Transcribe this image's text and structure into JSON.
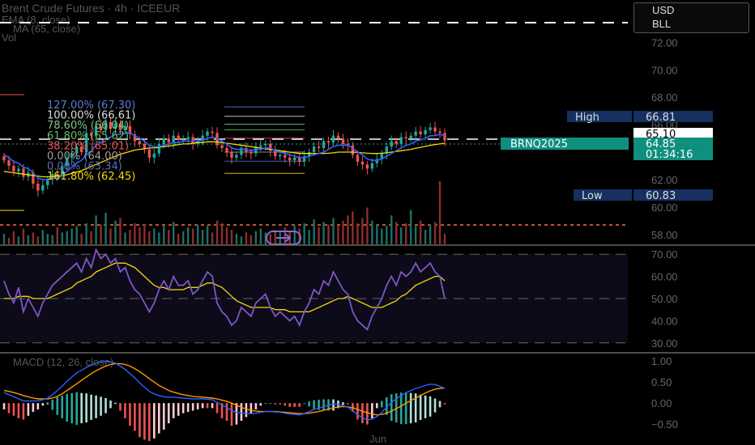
{
  "header": {
    "title": "Brent Crude Futures · 4h · ICEEUR",
    "ema_legend": "EMA (8, close)",
    "ma_legend": "MA (65, close)",
    "vol_legend": "Vol"
  },
  "currency_box": {
    "currency": "USD",
    "unit": "BLL"
  },
  "symbol": "BRNQ2025",
  "colors": {
    "up": "#26a69a",
    "down": "#ef5350",
    "ema": "#2962ff",
    "ma": "#f5d90a",
    "rsi": "#7e57c2",
    "macd": "#2962ff",
    "signal": "#ff9800",
    "dashed": "#ffffff"
  },
  "chart_data": [
    {
      "type": "candlestick",
      "name": "price",
      "y_ticks": [
        58.0,
        60.0,
        62.0,
        64.0,
        66.0,
        68.0,
        70.0,
        72.0
      ],
      "y_tick_labels": [
        "58.00",
        "60.00",
        "62.00",
        "64.00",
        "66.00",
        "68.00",
        "70.00",
        "72.00"
      ],
      "ylim": [
        57.75,
        74.5
      ],
      "x_labels": [
        "Jun"
      ],
      "markers": {
        "high": {
          "label": "High",
          "value": "66.81"
        },
        "low": {
          "label": "Low",
          "value": "60.83"
        },
        "last": {
          "value": "65.10"
        },
        "current": {
          "value": "64.85",
          "countdown": "01:34:16"
        }
      },
      "fib_levels": [
        {
          "label": "127.00% (67.30)",
          "price": 67.3,
          "color": "#5b7bd6"
        },
        {
          "label": "100.00% (66.61)",
          "price": 66.61,
          "color": "#dddddd"
        },
        {
          "label": "78.60% (66.04)",
          "price": 66.04,
          "color": "#81c784"
        },
        {
          "label": "61.80% (65.62)",
          "price": 65.62,
          "color": "#66bb6a"
        },
        {
          "label": "38.20% (65.01)",
          "price": 65.01,
          "color": "#ef5350"
        },
        {
          "label": "0.00% (64.00)",
          "price": 64.0,
          "color": "#9e9e9e"
        },
        {
          "label": "0.00% (63.34)",
          "price": 63.34,
          "color": "#5c6bc0"
        },
        {
          "label": "161.80% (62.45)",
          "price": 62.45,
          "color": "#f5d90a"
        }
      ],
      "reference_lines": {
        "dashed_white": 64.95,
        "dashed_orange": 58.0
      },
      "candles_close": [
        63.4,
        63.0,
        62.6,
        62.8,
        62.2,
        62.5,
        61.7,
        61.2,
        61.6,
        62.0,
        62.4,
        62.3,
        63.0,
        63.6,
        63.9,
        64.4,
        64.0,
        65.4,
        65.2,
        65.9,
        65.6,
        66.2,
        65.7,
        66.1,
        65.6,
        65.9,
        65.3,
        64.8,
        64.6,
        64.2,
        63.6,
        63.9,
        64.6,
        65.0,
        64.7,
        65.2,
        64.9,
        64.9,
        65.1,
        64.6,
        64.8,
        65.2,
        65.5,
        65.4,
        64.5,
        64.3,
        64.0,
        63.6,
        63.8,
        64.3,
        64.0,
        63.9,
        64.4,
        64.5,
        64.6,
        64.1,
        63.7,
        63.8,
        63.6,
        63.4,
        63.6,
        63.3,
        63.7,
        64.0,
        64.4,
        64.3,
        64.8,
        64.7,
        65.2,
        65.0,
        64.6,
        64.5,
        63.8,
        63.3,
        63.1,
        62.8,
        63.2,
        63.5,
        63.9,
        64.4,
        64.8,
        64.6,
        65.1,
        65.0,
        65.2,
        65.5,
        65.3,
        65.6,
        65.8,
        65.5,
        65.4,
        64.85
      ],
      "ema8": [
        63.8,
        63.6,
        63.3,
        63.2,
        62.9,
        62.8,
        62.5,
        62.1,
        62.0,
        62.0,
        62.1,
        62.1,
        62.3,
        62.6,
        62.9,
        63.2,
        63.4,
        63.8,
        64.1,
        64.5,
        64.7,
        65.0,
        65.1,
        65.3,
        65.3,
        65.4,
        65.4,
        65.2,
        65.0,
        64.8,
        64.5,
        64.4,
        64.4,
        64.5,
        64.6,
        64.7,
        64.7,
        64.8,
        64.8,
        64.8,
        64.8,
        64.9,
        65.0,
        65.1,
        65.0,
        64.8,
        64.6,
        64.3,
        64.2,
        64.2,
        64.2,
        64.1,
        64.2,
        64.2,
        64.3,
        64.3,
        64.1,
        64.0,
        63.9,
        63.8,
        63.7,
        63.6,
        63.6,
        63.7,
        63.8,
        63.9,
        64.0,
        64.2,
        64.4,
        64.5,
        64.5,
        64.5,
        64.3,
        64.0,
        63.8,
        63.5,
        63.4,
        63.4,
        63.5,
        63.7,
        63.9,
        64.1,
        64.3,
        64.5,
        64.6,
        64.8,
        64.9,
        65.0,
        65.2,
        65.2,
        65.3,
        65.2
      ],
      "ma65": [
        62.6,
        62.55,
        62.5,
        62.45,
        62.4,
        62.35,
        62.3,
        62.25,
        62.2,
        62.2,
        62.2,
        62.25,
        62.3,
        62.35,
        62.45,
        62.55,
        62.65,
        62.8,
        62.95,
        63.1,
        63.25,
        63.4,
        63.55,
        63.7,
        63.85,
        63.95,
        64.05,
        64.15,
        64.2,
        64.25,
        64.3,
        64.3,
        64.35,
        64.4,
        64.45,
        64.5,
        64.55,
        64.6,
        64.6,
        64.65,
        64.7,
        64.7,
        64.75,
        64.75,
        64.75,
        64.7,
        64.65,
        64.6,
        64.55,
        64.5,
        64.45,
        64.4,
        64.35,
        64.3,
        64.25,
        64.2,
        64.15,
        64.1,
        64.05,
        64.0,
        63.95,
        63.9,
        63.9,
        63.9,
        63.9,
        63.9,
        63.9,
        63.92,
        63.95,
        64.0,
        64.0,
        64.0,
        64.0,
        63.98,
        63.95,
        63.92,
        63.9,
        63.9,
        63.92,
        63.95,
        64.0,
        64.05,
        64.1,
        64.15,
        64.2,
        64.28,
        64.35,
        64.42,
        64.5,
        64.55,
        64.6,
        64.65
      ]
    },
    {
      "type": "bar",
      "name": "volume",
      "values": [
        8,
        5,
        10,
        6,
        12,
        7,
        9,
        6,
        11,
        8,
        7,
        13,
        9,
        10,
        12,
        14,
        8,
        16,
        10,
        22,
        15,
        24,
        12,
        18,
        20,
        9,
        11,
        16,
        13,
        15,
        10,
        12,
        9,
        14,
        11,
        17,
        8,
        10,
        13,
        12,
        15,
        11,
        14,
        9,
        18,
        16,
        13,
        11,
        8,
        6,
        9,
        7,
        10,
        12,
        9,
        8,
        11,
        9,
        13,
        10,
        14,
        12,
        16,
        11,
        19,
        13,
        17,
        15,
        20,
        14,
        18,
        22,
        25,
        16,
        20,
        28,
        18,
        15,
        12,
        14,
        22,
        17,
        13,
        16,
        26,
        14,
        18,
        11,
        15,
        17,
        48,
        8
      ]
    },
    {
      "type": "line",
      "name": "RSI",
      "y_ticks": [
        30,
        40,
        50,
        60,
        70
      ],
      "y_tick_labels": [
        "30.00",
        "40.00",
        "50.00",
        "60.00",
        "70.00"
      ],
      "ylim": [
        27,
        73
      ],
      "bands": [
        30,
        50,
        70
      ],
      "rsi": [
        58,
        52,
        48,
        55,
        44,
        50,
        46,
        42,
        48,
        52,
        56,
        58,
        60,
        62,
        64,
        66,
        62,
        68,
        64,
        72,
        68,
        70,
        66,
        68,
        62,
        64,
        58,
        54,
        52,
        48,
        44,
        48,
        54,
        58,
        54,
        60,
        56,
        56,
        58,
        52,
        54,
        58,
        62,
        60,
        48,
        44,
        42,
        38,
        40,
        46,
        44,
        42,
        48,
        50,
        52,
        46,
        42,
        44,
        42,
        40,
        42,
        38,
        44,
        48,
        54,
        52,
        58,
        56,
        62,
        58,
        54,
        52,
        44,
        40,
        38,
        36,
        42,
        46,
        50,
        56,
        60,
        56,
        62,
        60,
        62,
        66,
        62,
        64,
        66,
        62,
        60,
        50
      ],
      "rsi_ma": [
        50,
        50,
        50,
        51,
        51,
        51,
        50,
        50,
        50,
        50,
        51,
        52,
        53,
        54,
        55,
        57,
        58,
        59,
        60,
        62,
        63,
        64,
        65,
        66,
        66,
        66,
        65,
        64,
        62,
        60,
        58,
        56,
        55,
        55,
        54,
        54,
        54,
        54,
        55,
        55,
        55,
        56,
        57,
        57,
        56,
        55,
        53,
        51,
        49,
        48,
        47,
        46,
        46,
        46,
        46,
        46,
        45,
        45,
        45,
        44,
        44,
        44,
        44,
        44,
        45,
        46,
        47,
        48,
        49,
        50,
        50,
        51,
        50,
        49,
        48,
        47,
        46,
        46,
        46,
        47,
        48,
        49,
        51,
        52,
        54,
        56,
        57,
        58,
        59,
        60,
        60,
        58
      ]
    },
    {
      "type": "bar",
      "name": "MACD",
      "y_ticks": [
        -0.5,
        0.0,
        0.5,
        1.0
      ],
      "y_tick_labels": [
        "−0.50",
        "0.00",
        "0.50",
        "1.00"
      ],
      "ylim": [
        -0.65,
        1.12
      ],
      "legend": "MACD (12, 26, close)",
      "macd": [
        0.25,
        0.2,
        0.15,
        0.1,
        0.05,
        0.05,
        0.05,
        0.05,
        0.08,
        0.12,
        0.2,
        0.3,
        0.4,
        0.52,
        0.62,
        0.72,
        0.78,
        0.85,
        0.9,
        0.95,
        0.98,
        1.0,
        0.98,
        0.95,
        0.88,
        0.8,
        0.7,
        0.6,
        0.48,
        0.38,
        0.28,
        0.22,
        0.18,
        0.15,
        0.14,
        0.14,
        0.13,
        0.12,
        0.11,
        0.1,
        0.1,
        0.1,
        0.09,
        0.08,
        0.02,
        -0.05,
        -0.1,
        -0.18,
        -0.22,
        -0.24,
        -0.25,
        -0.25,
        -0.24,
        -0.22,
        -0.2,
        -0.2,
        -0.21,
        -0.22,
        -0.24,
        -0.26,
        -0.27,
        -0.28,
        -0.25,
        -0.2,
        -0.15,
        -0.12,
        -0.08,
        -0.05,
        -0.02,
        -0.03,
        -0.06,
        -0.1,
        -0.18,
        -0.28,
        -0.35,
        -0.4,
        -0.38,
        -0.32,
        -0.22,
        -0.1,
        0.02,
        0.1,
        0.18,
        0.25,
        0.3,
        0.35,
        0.38,
        0.42,
        0.45,
        0.44,
        0.4,
        0.35
      ],
      "signal": [
        0.3,
        0.28,
        0.25,
        0.22,
        0.18,
        0.15,
        0.12,
        0.1,
        0.1,
        0.1,
        0.12,
        0.16,
        0.22,
        0.3,
        0.38,
        0.46,
        0.54,
        0.62,
        0.7,
        0.77,
        0.83,
        0.88,
        0.92,
        0.94,
        0.94,
        0.92,
        0.88,
        0.82,
        0.75,
        0.67,
        0.58,
        0.5,
        0.42,
        0.36,
        0.3,
        0.26,
        0.23,
        0.2,
        0.18,
        0.16,
        0.15,
        0.14,
        0.13,
        0.12,
        0.1,
        0.07,
        0.04,
        0.0,
        -0.05,
        -0.1,
        -0.14,
        -0.17,
        -0.19,
        -0.2,
        -0.2,
        -0.2,
        -0.2,
        -0.21,
        -0.22,
        -0.23,
        -0.24,
        -0.25,
        -0.25,
        -0.24,
        -0.22,
        -0.2,
        -0.17,
        -0.14,
        -0.11,
        -0.09,
        -0.08,
        -0.09,
        -0.11,
        -0.15,
        -0.19,
        -0.23,
        -0.26,
        -0.28,
        -0.27,
        -0.24,
        -0.19,
        -0.13,
        -0.07,
        0.0,
        0.06,
        0.12,
        0.18,
        0.24,
        0.29,
        0.33,
        0.35,
        0.36
      ]
    }
  ],
  "x_axis_label": "Jun"
}
